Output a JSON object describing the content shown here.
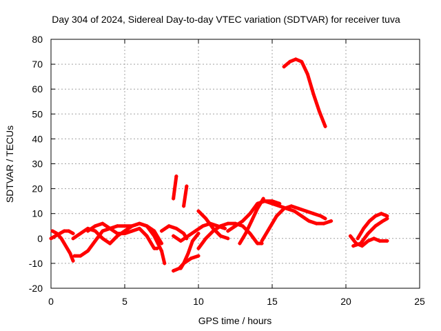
{
  "chart_data": {
    "type": "scatter",
    "title": "Day 304 of 2024, Sidereal Day-to-day VTEC variation (SDTVAR) for receiver tuva",
    "xlabel": "GPS time / hours",
    "ylabel": "SDTVAR / TECUs",
    "xlim": [
      0,
      25
    ],
    "ylim": [
      -20,
      80
    ],
    "xticks": [
      "0",
      "5",
      "10",
      "15",
      "20",
      "25"
    ],
    "yticks": [
      "-20",
      "-10",
      "0",
      "10",
      "20",
      "30",
      "40",
      "50",
      "60",
      "70",
      "80"
    ],
    "grid": true,
    "marker": "+",
    "color": "#ff0000",
    "series": [
      {
        "name": "arc-1",
        "x": [
          0.0,
          0.3,
          0.6,
          0.9,
          1.2,
          1.5
        ],
        "y": [
          0,
          1,
          2,
          3,
          3,
          2
        ]
      },
      {
        "name": "arc-2",
        "x": [
          0.1,
          0.4,
          0.7,
          1.0,
          1.3,
          1.5
        ],
        "y": [
          3,
          2,
          0,
          -3,
          -6,
          -9
        ]
      },
      {
        "name": "arc-3",
        "x": [
          1.6,
          2.0,
          2.5,
          3.0,
          3.5,
          4.0,
          4.5,
          5.0,
          5.5,
          6.0,
          6.5,
          7.0,
          7.5
        ],
        "y": [
          -7,
          -7,
          -5,
          -1,
          3,
          4,
          5,
          5,
          5,
          6,
          5,
          3,
          -2
        ]
      },
      {
        "name": "arc-4",
        "x": [
          2.5,
          3.0,
          3.5,
          4.0,
          4.5,
          5.0,
          5.5,
          6.0,
          6.5,
          7.0,
          7.2
        ],
        "y": [
          3,
          5,
          6,
          4,
          2,
          2,
          3,
          4,
          1,
          -4,
          -4
        ]
      },
      {
        "name": "arc-5",
        "x": [
          1.5,
          2.0,
          2.5,
          3.0,
          3.5,
          4.0
        ],
        "y": [
          0,
          2,
          4,
          3,
          0,
          -2
        ]
      },
      {
        "name": "arc-6",
        "x": [
          4.0,
          4.5,
          5.0,
          5.5,
          6.0,
          6.5,
          7.0,
          7.5,
          7.7
        ],
        "y": [
          -2,
          1,
          3,
          5,
          6,
          5,
          1,
          -5,
          -10
        ]
      },
      {
        "name": "arc-7",
        "x": [
          7.5,
          8.0,
          8.5,
          9.0,
          9.2
        ],
        "y": [
          3,
          5,
          4,
          2,
          0
        ]
      },
      {
        "name": "arc-8",
        "x": [
          8.3,
          8.5
        ],
        "y": [
          16,
          25
        ]
      },
      {
        "name": "arc-9",
        "x": [
          9.0,
          9.2
        ],
        "y": [
          13,
          21
        ]
      },
      {
        "name": "arc-10",
        "x": [
          8.3,
          8.7,
          9.0,
          9.5,
          10.0
        ],
        "y": [
          -13,
          -12,
          -10,
          -8,
          -7
        ]
      },
      {
        "name": "arc-11",
        "x": [
          8.8,
          9.0,
          9.3,
          9.6,
          10.0
        ],
        "y": [
          -12,
          -10,
          -6,
          -1,
          2
        ]
      },
      {
        "name": "arc-12",
        "x": [
          8.3,
          8.8,
          9.3,
          9.8,
          10.3,
          10.8,
          11.3,
          11.8
        ],
        "y": [
          1,
          -1,
          1,
          3,
          5,
          6,
          5,
          4
        ]
      },
      {
        "name": "arc-13",
        "x": [
          10.0,
          10.5,
          11.0,
          11.5,
          12.0,
          12.5,
          13.0,
          13.5,
          14.0,
          14.3
        ],
        "y": [
          -4,
          0,
          3,
          5,
          6,
          6,
          5,
          2,
          -2,
          -2
        ]
      },
      {
        "name": "arc-14",
        "x": [
          10.0,
          10.5,
          11.0,
          11.5,
          12.0
        ],
        "y": [
          11,
          8,
          4,
          1,
          0
        ]
      },
      {
        "name": "arc-15",
        "x": [
          12.0,
          12.5,
          13.0,
          13.5,
          14.0,
          14.5,
          15.0,
          15.5
        ],
        "y": [
          3,
          5,
          7,
          10,
          14,
          15,
          15,
          14
        ]
      },
      {
        "name": "arc-16",
        "x": [
          12.8,
          13.2,
          13.6,
          14.0,
          14.4
        ],
        "y": [
          -2,
          2,
          7,
          12,
          16
        ]
      },
      {
        "name": "arc-17",
        "x": [
          14.3,
          14.8,
          15.3,
          15.8,
          16.3,
          16.8,
          17.3,
          17.8,
          18.3,
          18.6
        ],
        "y": [
          -1,
          4,
          9,
          12,
          13,
          12,
          11,
          10,
          9,
          8
        ]
      },
      {
        "name": "arc-18",
        "x": [
          14.5,
          15.0,
          15.5,
          16.0,
          16.5,
          17.0,
          17.5,
          18.0,
          18.5,
          19.0
        ],
        "y": [
          15,
          14,
          13,
          12,
          11,
          9,
          7,
          6,
          6,
          7
        ]
      },
      {
        "name": "arc-19",
        "x": [
          15.8,
          16.2,
          16.6,
          17.0,
          17.4,
          17.8,
          18.2,
          18.6
        ],
        "y": [
          69,
          71,
          72,
          71,
          66,
          58,
          51,
          45
        ]
      },
      {
        "name": "arc-20",
        "x": [
          20.3,
          20.7,
          21.1,
          21.5,
          21.9,
          22.3,
          22.8
        ],
        "y": [
          1,
          -2,
          -3,
          -1,
          0,
          -1,
          -1
        ]
      },
      {
        "name": "arc-21",
        "x": [
          20.5,
          21.0,
          21.5,
          22.0,
          22.5,
          22.8
        ],
        "y": [
          -3,
          -2,
          2,
          5,
          7,
          8
        ]
      },
      {
        "name": "arc-22",
        "x": [
          20.8,
          21.2,
          21.6,
          22.0,
          22.4,
          22.8
        ],
        "y": [
          0,
          4,
          7,
          9,
          10,
          9
        ]
      }
    ]
  }
}
